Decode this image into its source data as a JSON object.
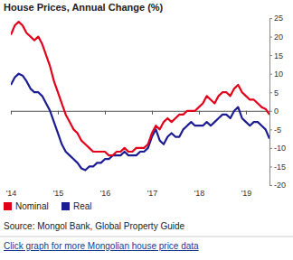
{
  "chart_data": {
    "type": "line",
    "title": "House Prices, Annual Change (%)",
    "categories": [
      "'14",
      null,
      null,
      null,
      null,
      null,
      null,
      null,
      null,
      null,
      null,
      null,
      "'15",
      null,
      null,
      null,
      null,
      null,
      null,
      null,
      null,
      null,
      null,
      null,
      "'16",
      null,
      null,
      null,
      null,
      null,
      null,
      null,
      null,
      null,
      null,
      null,
      "'17",
      null,
      null,
      null,
      null,
      null,
      null,
      null,
      null,
      null,
      null,
      null,
      "'18",
      null,
      null,
      null,
      null,
      null,
      null,
      null,
      null,
      null,
      null,
      null,
      "'19",
      null,
      null,
      null,
      null,
      null,
      null
    ],
    "series": [
      {
        "name": "Nominal",
        "color": "#e3001b",
        "values": [
          20.5,
          23,
          24,
          23,
          21,
          20,
          19,
          20,
          18,
          15,
          12,
          8,
          5,
          2,
          -1,
          -3,
          -5,
          -6,
          -8,
          -9,
          -10,
          -11,
          -11,
          -11,
          -11,
          -12,
          -12,
          -11,
          -11,
          -10,
          -11,
          -11,
          -10,
          -10,
          -10,
          -9,
          -6,
          -4,
          -5,
          -3,
          -2,
          -3,
          -2,
          -1,
          -1,
          0,
          0,
          0,
          1,
          2,
          4,
          3,
          2,
          4,
          5,
          5,
          4,
          6,
          7,
          5,
          4,
          3,
          3,
          2,
          1,
          0.5,
          -1
        ]
      },
      {
        "name": "Real",
        "color": "#1c1c94",
        "values": [
          7,
          9,
          10,
          9.5,
          8,
          6,
          5,
          5,
          4,
          2,
          0,
          -3,
          -6,
          -9,
          -11,
          -12,
          -13,
          -14,
          -15.5,
          -16,
          -15,
          -15,
          -14,
          -14,
          -13,
          -13,
          -12,
          -12,
          -12,
          -11,
          -12,
          -12,
          -12,
          -11,
          -11,
          -10,
          -7,
          -5,
          -8,
          -9,
          -7,
          -6,
          -7,
          -7,
          -5,
          -4,
          -3,
          -4,
          -4,
          -4,
          -3,
          -4,
          -3,
          -2,
          -1,
          -1,
          -2,
          0,
          1,
          -2,
          -3,
          -4,
          -3,
          -3,
          -4,
          -5,
          -7.5
        ]
      }
    ],
    "ylim": [
      -20,
      25
    ],
    "yticks": [
      -20,
      -15,
      -10,
      -5,
      0,
      5,
      10,
      15,
      20,
      25
    ],
    "grid": false,
    "legend": "bottom",
    "source": "Source: Mongol Bank, Global Property Guide",
    "link": "Click graph for more Mongolian house price data"
  }
}
